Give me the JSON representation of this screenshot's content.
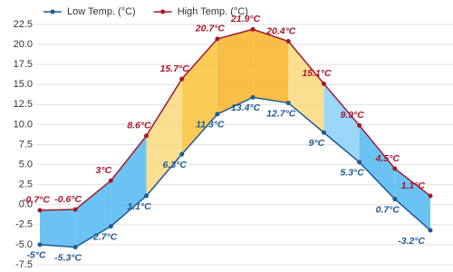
{
  "chart_data": {
    "type": "line",
    "legend": "top-left",
    "categories": [
      null,
      null,
      null,
      null,
      null,
      null,
      null,
      null,
      null,
      null,
      null,
      null
    ],
    "series": [
      {
        "name": "Low Temp. (°C)",
        "color": "#1f5a96",
        "values": [
          -5,
          -5.3,
          -2.7,
          1.1,
          6.3,
          11.3,
          13.4,
          12.7,
          9,
          5.3,
          0.7,
          -3.2
        ],
        "value_labels": [
          "-5°C",
          "-5.3°C",
          "-2.7°C",
          "1.1°C",
          "6.3°C",
          "11.3°C",
          "13.4°C",
          "12.7°C",
          "9°C",
          "5.3°C",
          "0.7°C",
          "-3.2°C"
        ]
      },
      {
        "name": "High Temp. (°C)",
        "color": "#a3172c",
        "values": [
          -0.7,
          -0.6,
          3,
          8.6,
          15.7,
          20.7,
          21.9,
          20.4,
          15.1,
          9.9,
          4.5,
          1.1
        ],
        "value_labels": [
          "-0.7°C",
          "-0.6°C",
          "3°C",
          "8.6°C",
          "15.7°C",
          "20.7°C",
          "21.9°C",
          "20.4°C",
          "15.1°C",
          "9.9°C",
          "4.5°C",
          "1.1°C"
        ]
      }
    ],
    "area_colors": [
      "#5bbcf2",
      "#5bbcf2",
      "#5bbcf2",
      "#fbdc84",
      "#f9c744",
      "#f7b733",
      "#f7b733",
      "#fbdc84",
      "#8fd3f7",
      "#5bbcf2",
      "#5bbcf2"
    ],
    "ylim": [
      -7.5,
      22.5
    ],
    "yticks": [
      -7.5,
      {
        "value": -5,
        "label": "-5.0"
      },
      -2.5,
      {
        "value": 0,
        "label": "0.0"
      },
      2.5,
      {
        "value": 5,
        "label": "5.0"
      },
      7.5,
      {
        "value": 10,
        "label": "10.0"
      },
      12.5,
      {
        "value": 15,
        "label": "15.0"
      },
      17.5,
      {
        "value": 20,
        "label": "20.0"
      },
      22.5
    ],
    "grid": true
  }
}
